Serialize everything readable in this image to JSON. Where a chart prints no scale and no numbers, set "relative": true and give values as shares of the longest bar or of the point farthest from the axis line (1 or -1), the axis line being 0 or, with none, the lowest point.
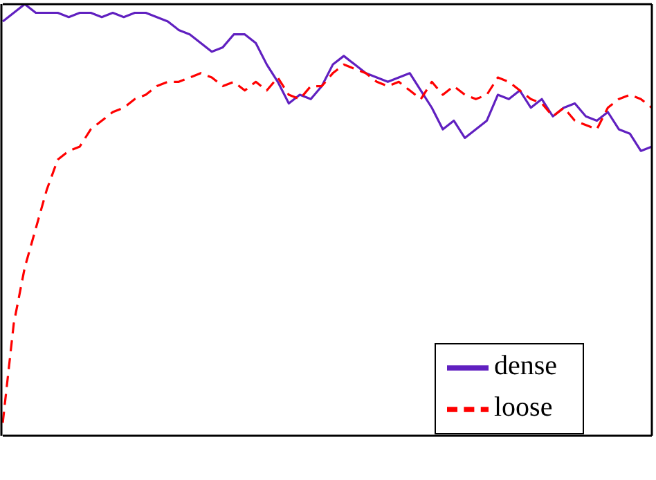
{
  "chart_data": {
    "type": "line",
    "relative": true,
    "legend": "bottom right",
    "marker": "none",
    "categories": [
      null,
      null,
      null,
      null,
      null,
      null,
      null,
      null,
      null,
      null,
      null,
      null,
      null,
      null,
      null,
      null,
      null,
      null,
      null,
      null,
      null,
      null,
      null,
      null,
      null,
      null,
      null,
      null,
      null,
      null,
      null,
      null,
      null,
      null,
      null,
      null,
      null,
      null,
      null,
      null,
      null,
      null,
      null,
      null,
      null,
      null,
      null,
      null,
      null,
      null,
      null,
      null,
      null,
      null,
      null,
      null,
      null,
      null,
      null,
      null
    ],
    "series": [
      {
        "name": "dense",
        "color": "#6020c0",
        "line_style": "solid",
        "values": [
          0.96,
          0.98,
          1.0,
          0.98,
          0.98,
          0.98,
          0.97,
          0.98,
          0.98,
          0.97,
          0.98,
          0.97,
          0.98,
          0.98,
          0.97,
          0.96,
          0.94,
          0.93,
          0.91,
          0.89,
          0.9,
          0.93,
          0.93,
          0.91,
          0.86,
          0.82,
          0.77,
          0.79,
          0.78,
          0.81,
          0.86,
          0.88,
          0.86,
          0.84,
          0.83,
          0.82,
          0.83,
          0.84,
          0.8,
          0.76,
          0.71,
          0.73,
          0.69,
          0.71,
          0.73,
          0.79,
          0.78,
          0.8,
          0.76,
          0.78,
          0.74,
          0.76,
          0.77,
          0.74,
          0.73,
          0.75,
          0.71,
          0.7,
          0.66,
          0.67
        ]
      },
      {
        "name": "loose",
        "color": "#ff0000",
        "line_style": "dashed",
        "values": [
          0.03,
          0.26,
          0.39,
          0.48,
          0.57,
          0.64,
          0.66,
          0.67,
          0.71,
          0.73,
          0.75,
          0.76,
          0.78,
          0.79,
          0.81,
          0.82,
          0.82,
          0.83,
          0.84,
          0.83,
          0.81,
          0.82,
          0.8,
          0.82,
          0.8,
          0.83,
          0.79,
          0.78,
          0.81,
          0.81,
          0.84,
          0.86,
          0.85,
          0.84,
          0.82,
          0.81,
          0.82,
          0.8,
          0.78,
          0.82,
          0.79,
          0.81,
          0.79,
          0.78,
          0.79,
          0.83,
          0.82,
          0.8,
          0.78,
          0.77,
          0.74,
          0.76,
          0.73,
          0.72,
          0.71,
          0.76,
          0.78,
          0.79,
          0.78,
          0.76
        ]
      }
    ]
  }
}
